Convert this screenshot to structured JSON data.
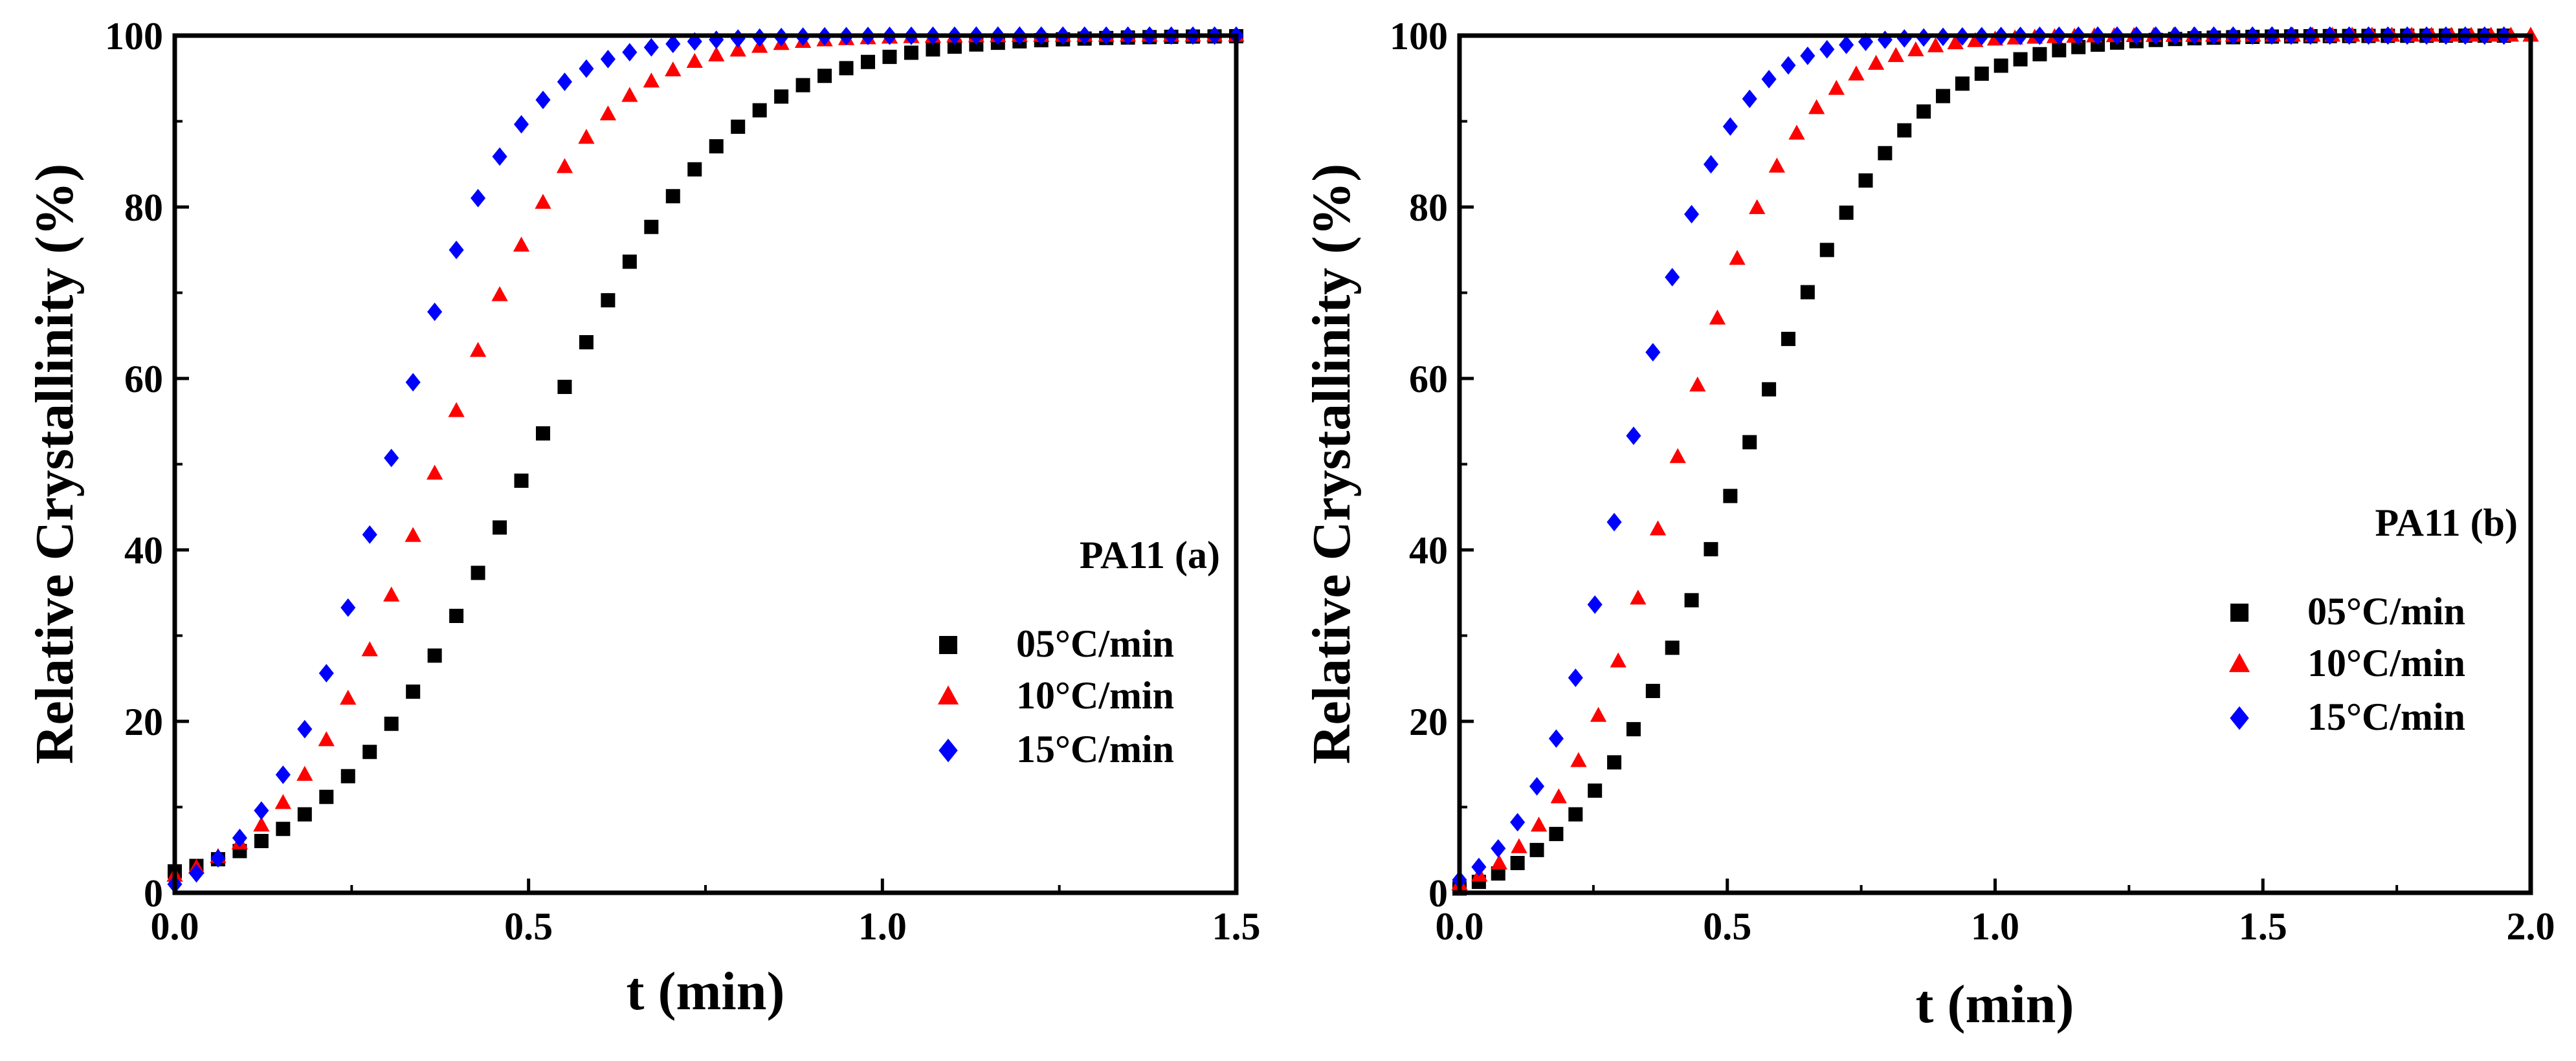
{
  "chart_data": [
    {
      "type": "scatter",
      "panel": "a",
      "xlabel": "t (min)",
      "ylabel": "Relative Crystallinity (%)",
      "xlim": [
        0,
        1.5
      ],
      "ylim": [
        0,
        100
      ],
      "xticks": [
        "0.0",
        "0.5",
        "1.0",
        "1.5"
      ],
      "yticks": [
        "0",
        "20",
        "40",
        "60",
        "80",
        "100"
      ],
      "legend_title": "PA11 (a)",
      "legend_position": "bottom-right",
      "series": [
        {
          "name": "05°C/min",
          "marker": "square",
          "color": "#000000",
          "n": 50,
          "t_end": 1.5,
          "y0": 2.5,
          "t50": 0.5,
          "k": 7.2
        },
        {
          "name": "10°C/min",
          "marker": "triangle",
          "color": "#ff0000",
          "n": 50,
          "t_end": 1.5,
          "y0": 2.0,
          "t50": 0.37,
          "k": 9.5
        },
        {
          "name": "15°C/min",
          "marker": "diamond",
          "color": "#0000ff",
          "n": 50,
          "t_end": 1.5,
          "y0": 1.0,
          "t50": 0.3,
          "k": 11.5
        }
      ]
    },
    {
      "type": "scatter",
      "panel": "b",
      "xlabel": "t (min)",
      "ylabel": "Relative Crystallinity (%)",
      "xlim": [
        0,
        2.0
      ],
      "ylim": [
        0,
        100
      ],
      "xticks": [
        "0.0",
        "0.5",
        "1.0",
        "1.5",
        "2.0"
      ],
      "yticks": [
        "0",
        "20",
        "40",
        "60",
        "80",
        "100"
      ],
      "legend_title": "PA11 (b)",
      "legend_position": "bottom-right",
      "series": [
        {
          "name": "05°C/min",
          "marker": "square",
          "color": "#000000",
          "n": 55,
          "t_end": 1.95,
          "y0": 0.5,
          "t50": 0.52,
          "k": 6.8
        },
        {
          "name": "10°C/min",
          "marker": "triangle",
          "color": "#ff0000",
          "n": 55,
          "t_end": 2.0,
          "y0": 1.0,
          "t50": 0.4,
          "k": 9.0
        },
        {
          "name": "15°C/min",
          "marker": "diamond",
          "color": "#0000ff",
          "n": 55,
          "t_end": 1.95,
          "y0": 1.5,
          "t50": 0.31,
          "k": 11.0
        }
      ]
    }
  ]
}
